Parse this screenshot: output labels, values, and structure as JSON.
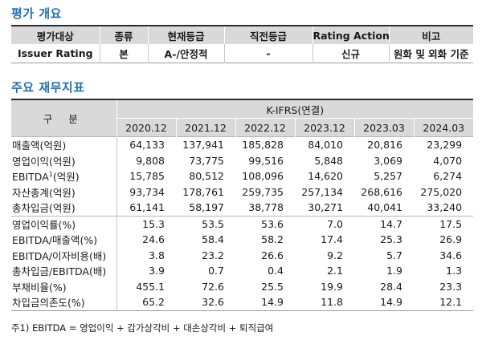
{
  "rating_overview": {
    "title": "평가 개요",
    "headers": [
      "평가대상",
      "종류",
      "현재등급",
      "직전등급",
      "Rating Action",
      "비고"
    ],
    "row": [
      "Issuer Rating",
      "본",
      "A-/안정적",
      "-",
      "신규",
      "원화 및 외화 기준"
    ]
  },
  "financials": {
    "title": "주요 재무지표",
    "corner_label": "구 분",
    "basis": "K-IFRS(연결)",
    "periods": [
      "2020.12",
      "2021.12",
      "2022.12",
      "2023.12",
      "2023.03",
      "2024.03"
    ],
    "rows": [
      {
        "label": "매출액(억원)",
        "values": [
          "64,133",
          "137,941",
          "185,828",
          "84,010",
          "20,816",
          "23,299"
        ]
      },
      {
        "label": "영업이익(억원)",
        "values": [
          "9,808",
          "73,775",
          "99,516",
          "5,848",
          "3,069",
          "4,070"
        ]
      },
      {
        "label": "EBITDA",
        "label_sup": "1",
        "label_suffix": "(억원)",
        "values": [
          "15,785",
          "80,512",
          "108,096",
          "14,620",
          "5,257",
          "6,274"
        ]
      },
      {
        "label": "자산총계(억원)",
        "values": [
          "93,734",
          "178,761",
          "259,735",
          "257,134",
          "268,616",
          "275,020"
        ]
      },
      {
        "label": "총차입금(억원)",
        "values": [
          "61,141",
          "58,197",
          "38,778",
          "30,271",
          "40,041",
          "33,240"
        ]
      },
      {
        "label": "영업이익률(%)",
        "values": [
          "15.3",
          "53.5",
          "53.6",
          "7.0",
          "14.7",
          "17.5"
        ]
      },
      {
        "label": "EBITDA/매출액(%)",
        "values": [
          "24.6",
          "58.4",
          "58.2",
          "17.4",
          "25.3",
          "26.9"
        ]
      },
      {
        "label": "EBITDA/이자비용(배)",
        "values": [
          "3.8",
          "23.2",
          "26.6",
          "9.2",
          "5.7",
          "34.6"
        ]
      },
      {
        "label": "총차입금/EBITDA(배)",
        "values": [
          "3.9",
          "0.7",
          "0.4",
          "2.1",
          "1.9",
          "1.3"
        ]
      },
      {
        "label": "부채비율(%)",
        "values": [
          "455.1",
          "72.6",
          "25.5",
          "19.9",
          "28.4",
          "23.3"
        ]
      },
      {
        "label": "차입금의존도(%)",
        "values": [
          "65.2",
          "32.6",
          "14.9",
          "11.8",
          "14.9",
          "12.1"
        ]
      }
    ]
  },
  "footnote": "주1) EBITDA = 영업이익 + 감가상각비 + 대손상각비 + 퇴직급여"
}
